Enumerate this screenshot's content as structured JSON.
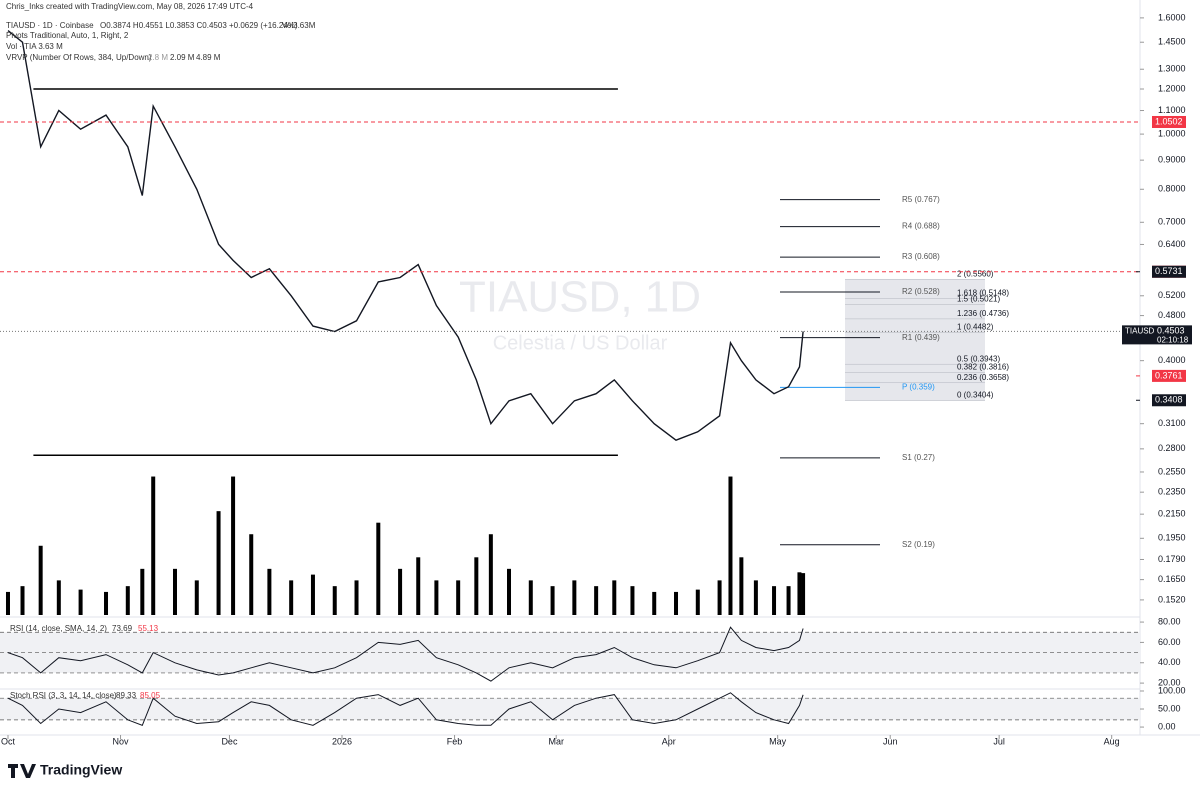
{
  "header": {
    "credit": "Chris_Inks created with TradingView.com, May 08, 2026 17:49 UTC-4",
    "symbol": "TIAUSD · 1D · Coinbase",
    "ohlc": "O0.3874 H0.4551 L0.3853 C0.4503 +0.0629 (+16.24%)",
    "volume": "Vol3.63M",
    "pivots_legend": "Pivots Traditional, Auto, 1, Right, 2",
    "vol_legend": "Vol · TIA 3.63 M",
    "vrvp_legend": "VRVP (Number Of Rows, 384, Up/Down)",
    "vrvp_values": [
      "2.8 M",
      "2.09 M",
      "4.89 M"
    ]
  },
  "watermark": {
    "symbol": "TIAUSD, 1D",
    "name": "Celestia / US Dollar"
  },
  "logo": "TradingView",
  "chart_data": {
    "type": "line",
    "log_scale": true,
    "x": [
      0,
      4,
      9,
      14,
      20,
      27,
      33,
      37,
      40,
      46,
      52,
      58,
      62,
      67,
      72,
      78,
      84,
      90,
      96,
      102,
      108,
      113,
      118,
      124,
      129,
      133,
      138,
      144,
      150,
      156,
      162,
      167,
      172,
      178,
      184,
      190,
      196,
      199,
      202,
      206,
      211,
      215,
      218,
      219
    ],
    "xlim": [
      -2.2,
      311.8
    ],
    "xticks": [
      {
        "value": 0,
        "label": "Oct"
      },
      {
        "value": 31,
        "label": "Nov"
      },
      {
        "value": 61,
        "label": "Dec"
      },
      {
        "value": 92,
        "label": "2026"
      },
      {
        "value": 123,
        "label": "Feb"
      },
      {
        "value": 151,
        "label": "Mar"
      },
      {
        "value": 182,
        "label": "Apr"
      },
      {
        "value": 212,
        "label": "May"
      },
      {
        "value": 243,
        "label": "Jun"
      },
      {
        "value": 273,
        "label": "Jul"
      },
      {
        "value": 304,
        "label": "Aug"
      }
    ],
    "ylim": [
      0.143,
      1.72
    ],
    "yticks": [
      {
        "value": 1.6,
        "label": "1.6000"
      },
      {
        "value": 1.45,
        "label": "1.4500"
      },
      {
        "value": 1.3,
        "label": "1.3000"
      },
      {
        "value": 1.2,
        "label": "1.2000"
      },
      {
        "value": 1.1,
        "label": "1.1000"
      },
      {
        "value": 1,
        "label": "1.0000"
      },
      {
        "value": 0.9,
        "label": "0.9000"
      },
      {
        "value": 0.8,
        "label": "0.8000"
      },
      {
        "value": 0.7,
        "label": "0.7000"
      },
      {
        "value": 0.64,
        "label": "0.6400"
      },
      {
        "value": 0.52,
        "label": "0.5200"
      },
      {
        "value": 0.48,
        "label": "0.4800"
      },
      {
        "value": 0.4,
        "label": "0.4000"
      },
      {
        "value": 0.31,
        "label": "0.3100"
      },
      {
        "value": 0.28,
        "label": "0.2800"
      },
      {
        "value": 0.255,
        "label": "0.2550"
      },
      {
        "value": 0.235,
        "label": "0.2350"
      },
      {
        "value": 0.215,
        "label": "0.2150"
      },
      {
        "value": 0.195,
        "label": "0.1950"
      },
      {
        "value": 0.179,
        "label": "0.1790"
      },
      {
        "value": 0.165,
        "label": "0.1650"
      },
      {
        "value": 0.152,
        "label": "0.1520"
      }
    ],
    "series": [
      {
        "color": "#131722",
        "values": [
          1.52,
          1.45,
          0.95,
          1.1,
          1.02,
          1.08,
          0.95,
          0.78,
          1.12,
          0.95,
          0.8,
          0.64,
          0.6,
          0.56,
          0.58,
          0.52,
          0.46,
          0.45,
          0.47,
          0.55,
          0.56,
          0.59,
          0.5,
          0.44,
          0.37,
          0.31,
          0.34,
          0.35,
          0.31,
          0.34,
          0.35,
          0.37,
          0.34,
          0.31,
          0.29,
          0.3,
          0.32,
          0.43,
          0.4,
          0.37,
          0.35,
          0.36,
          0.39,
          0.4503
        ]
      }
    ],
    "volume": {
      "color": "#000000",
      "ylim": [
        0,
        13
      ],
      "values": [
        2,
        2.5,
        6,
        3,
        2.2,
        2,
        2.5,
        4,
        12,
        4,
        3,
        9,
        12,
        7,
        4,
        3,
        3.5,
        2.5,
        3,
        8,
        4,
        5,
        3,
        3,
        5,
        7,
        4,
        3,
        2.5,
        3,
        2.5,
        3,
        2.5,
        2,
        2,
        2.2,
        3,
        12,
        5,
        3,
        2.5,
        2.5,
        3.7,
        3.63
      ]
    },
    "levels": [
      {
        "value": 1.2,
        "from": 7,
        "to": 168
      },
      {
        "value": 0.2728,
        "from": 7,
        "to": 168
      }
    ],
    "pivots": [
      {
        "label": "R5 (0.767)",
        "value": 0.767
      },
      {
        "label": "R4 (0.688)",
        "value": 0.688
      },
      {
        "label": "R3 (0.608)",
        "value": 0.608
      },
      {
        "label": "R2 (0.528)",
        "value": 0.528
      },
      {
        "label": "R1 (0.439)",
        "value": 0.439
      },
      {
        "label": "P (0.359)",
        "value": 0.359,
        "color": "#2196f3"
      },
      {
        "label": "S1 (0.27)",
        "value": 0.27
      },
      {
        "label": "S2 (0.19)",
        "value": 0.19
      }
    ],
    "fib": [
      {
        "label": "2 (0.5560)",
        "value": 0.556
      },
      {
        "label": "1.618 (0.5148)",
        "value": 0.5148
      },
      {
        "label": "1.5 (0.5021)",
        "value": 0.5021
      },
      {
        "label": "1.236 (0.4736)",
        "value": 0.4736
      },
      {
        "label": "1 (0.4482)",
        "value": 0.4482
      },
      {
        "label": "0.5 (0.3943)",
        "value": 0.3943
      },
      {
        "label": "0.382 (0.3816)",
        "value": 0.3816
      },
      {
        "label": "0.236 (0.3658)",
        "value": 0.3658
      },
      {
        "label": "0 (0.3404)",
        "value": 0.3404
      }
    ],
    "price_labels": [
      {
        "label": "1.0502",
        "value": 1.0502,
        "color": "#f23645",
        "dashed": true
      },
      {
        "label": "0.5732",
        "value": 0.5732,
        "color": "#f23645",
        "dashed": true
      },
      {
        "label": "0.5731",
        "value": 0.5731,
        "color": "#131722"
      },
      {
        "symbol": "TIAUSD",
        "label": "0.4503",
        "value": 0.4503,
        "color": "#131722",
        "countdown": "02:10:18"
      },
      {
        "label": "0.3761",
        "value": 0.3761,
        "color": "#f23645"
      },
      {
        "label": "0.3408",
        "value": 0.3408,
        "color": "#131722"
      }
    ],
    "rsi": {
      "legend": "RSI (14, close, SMA, 14, 2)",
      "value_text": "73.69",
      "ma_text": "55.13",
      "ylim": [
        14.2,
        84
      ],
      "bands": [
        70,
        50,
        30
      ],
      "yticks": [
        {
          "value": 80,
          "label": "80.00"
        },
        {
          "value": 60,
          "label": "60.00"
        },
        {
          "value": 40,
          "label": "40.00"
        },
        {
          "value": 20,
          "label": "20.00"
        }
      ],
      "values": [
        50,
        45,
        30,
        45,
        42,
        48,
        38,
        30,
        50,
        40,
        33,
        28,
        30,
        35,
        40,
        35,
        30,
        35,
        45,
        60,
        58,
        62,
        45,
        38,
        30,
        22,
        35,
        40,
        35,
        45,
        48,
        55,
        45,
        38,
        35,
        42,
        50,
        75,
        62,
        55,
        52,
        55,
        62,
        73.69
      ]
    },
    "stoch": {
      "legend": "Stoch RSI (3, 3, 14, 14, close)",
      "value_text": "89.33",
      "signal_text": "85.05",
      "ylim": [
        -22,
        105.5
      ],
      "bands": [
        80,
        20
      ],
      "yticks": [
        {
          "value": 100,
          "label": "100.00"
        },
        {
          "value": 50,
          "label": "50.00"
        },
        {
          "value": 0,
          "label": "0.00"
        }
      ],
      "values": [
        80,
        60,
        10,
        50,
        40,
        70,
        20,
        5,
        80,
        30,
        10,
        15,
        40,
        70,
        60,
        20,
        5,
        40,
        80,
        90,
        60,
        80,
        20,
        10,
        5,
        5,
        50,
        70,
        20,
        60,
        80,
        90,
        20,
        10,
        20,
        50,
        80,
        95,
        70,
        40,
        20,
        10,
        60,
        89.33
      ]
    }
  }
}
